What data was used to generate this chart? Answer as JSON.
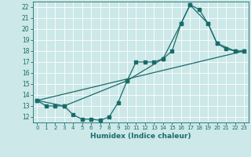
{
  "xlabel": "Humidex (Indice chaleur)",
  "bg_color": "#cce8e8",
  "grid_color": "#ffffff",
  "line_color": "#1a6b6b",
  "xlim": [
    -0.5,
    23.5
  ],
  "ylim": [
    11.5,
    22.5
  ],
  "xticks": [
    0,
    1,
    2,
    3,
    4,
    5,
    6,
    7,
    8,
    9,
    10,
    11,
    12,
    13,
    14,
    15,
    16,
    17,
    18,
    19,
    20,
    21,
    22,
    23
  ],
  "yticks": [
    12,
    13,
    14,
    15,
    16,
    17,
    18,
    19,
    20,
    21,
    22
  ],
  "line1_x": [
    0,
    1,
    2,
    3,
    4,
    5,
    6,
    7,
    8,
    9,
    10,
    11,
    12,
    13,
    14,
    15,
    16,
    17,
    18,
    19,
    20,
    21,
    22,
    23
  ],
  "line1_y": [
    13.5,
    13.0,
    13.0,
    13.0,
    12.2,
    11.8,
    11.8,
    11.7,
    12.0,
    13.3,
    15.3,
    17.0,
    17.0,
    17.0,
    17.3,
    18.0,
    20.5,
    22.2,
    21.8,
    20.5,
    18.7,
    18.2,
    18.0,
    18.0
  ],
  "line2_x": [
    0,
    3,
    10,
    14,
    16,
    17,
    19,
    20,
    22,
    23
  ],
  "line2_y": [
    13.5,
    13.0,
    15.3,
    17.3,
    20.5,
    22.2,
    20.5,
    18.7,
    18.0,
    18.0
  ],
  "line3_x": [
    0,
    23
  ],
  "line3_y": [
    13.5,
    18.0
  ]
}
